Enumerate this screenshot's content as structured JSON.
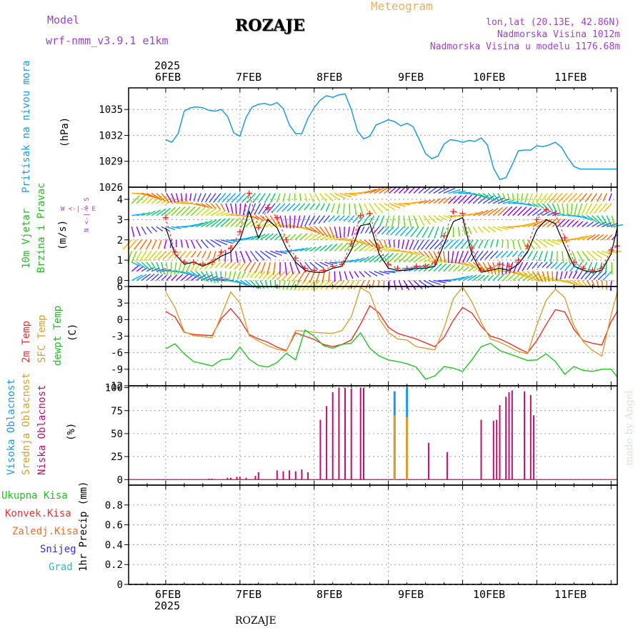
{
  "header": {
    "model_label": "Model",
    "model_name": "wrf-nmm_v3.9.1 e1km",
    "station": "ROZAJE",
    "title": "Meteogram",
    "lonlat": "lon,lat (20.13E, 42.86N)",
    "altitude": "Nadmorska Visina 1012m",
    "model_altitude": "Nadmorska Visina u modelu 1176.68m",
    "footer_station": "ROZAJE",
    "watermark": "made by Angel"
  },
  "colors": {
    "pressure": "#1a9be6",
    "temp2m": "#e8322c",
    "sfc_temp": "#d9a030",
    "dewpt": "#1ec81e",
    "wind_speed": "#000000",
    "wind_gust": "#ff2020",
    "cloud_high": "#1a9be6",
    "cloud_mid": "#d9a030",
    "cloud_low": "#c0106a",
    "label_purple": "#a040d0",
    "label_orange": "#e8b060",
    "total_precip": "#20c020",
    "convective": "#f03030",
    "freezing": "#f07020",
    "snow": "#3030e0",
    "hail": "#20c0c0"
  },
  "time_axis": {
    "year": "2025",
    "days": [
      "6FEB",
      "7FEB",
      "8FEB",
      "9FEB",
      "10FEB",
      "11FEB"
    ]
  },
  "panels": {
    "pressure": {
      "label1": "Pritisak na nivou mora",
      "unit": "(hPa)"
    },
    "wind": {
      "label1": "10m Vjetar",
      "label2": "Brzina i Pravac",
      "unit": "(m/s)",
      "compass_ns": "N <-|-> S",
      "compass_we": "W <-|-> E"
    },
    "temp": {
      "label1": "2m Temp",
      "label2": "SFC Temp",
      "label3": "dewpt Temp",
      "unit": "(C)"
    },
    "cloud": {
      "label1": "Visoka Oblacnost",
      "label2": "Srednja Oblacnost",
      "label3": "Niska Oblacnost",
      "unit": "(%)"
    },
    "precip": {
      "legend": [
        "Ukupna Kisa",
        "Konvek.Kisa",
        "Zaledj.Kisa",
        "Snijeg",
        "Grad"
      ],
      "unit": "1hr Precip (mm)"
    }
  },
  "chart_data": [
    {
      "type": "line",
      "name": "pressure",
      "ylabel": "(hPa)",
      "ylim": [
        1026,
        1037.5
      ],
      "yticks": [
        1029,
        1032,
        1035
      ],
      "x_hours": [
        0,
        6,
        12,
        18,
        24,
        30,
        36,
        42,
        48,
        54,
        60,
        66,
        72,
        78,
        84,
        90,
        96,
        102,
        108,
        114,
        120,
        126,
        132,
        138
      ],
      "x": [
        0,
        2,
        4,
        6,
        8,
        10,
        12,
        14,
        16,
        18,
        20,
        22,
        24,
        26,
        28,
        30,
        32,
        34,
        36,
        38,
        40,
        42,
        44,
        46,
        48,
        50,
        52,
        54,
        56,
        58,
        60,
        62,
        64,
        66,
        68,
        70,
        72,
        74,
        76,
        78,
        80,
        82,
        84,
        86,
        88,
        90,
        92,
        94,
        96,
        98,
        100,
        102,
        104,
        106,
        108,
        110,
        112,
        114,
        116,
        118,
        120,
        122,
        124,
        126,
        128,
        130,
        132,
        134,
        136,
        138,
        140,
        142,
        144,
        146
      ],
      "series": [
        {
          "name": "Pritisak na nivou mora",
          "values": [
            1031.5,
            1031.2,
            1032.2,
            1034.8,
            1035.2,
            1035.3,
            1035.2,
            1034.9,
            1034.8,
            1035.0,
            1034.2,
            1032.3,
            1031.9,
            1034.1,
            1035.3,
            1035.6,
            1035.7,
            1035.5,
            1035.8,
            1035.1,
            1033.2,
            1032.2,
            1032.2,
            1034.0,
            1035.2,
            1036.1,
            1036.6,
            1036.4,
            1036.7,
            1036.8,
            1035.0,
            1032.5,
            1031.6,
            1031.9,
            1033.2,
            1033.5,
            1033.8,
            1033.6,
            1033.1,
            1033.4,
            1033.0,
            1031.5,
            1029.9,
            1029.3,
            1029.6,
            1031.0,
            1031.5,
            1031.4,
            1031.2,
            1031.4,
            1031.3,
            1031.7,
            1030.9,
            1028.2,
            1026.9,
            1027.1,
            1028.6,
            1030.2,
            1030.3,
            1030.3,
            1030.8,
            1030.7,
            1030.9,
            1031.2,
            1030.6,
            1029.4,
            1028.4,
            1028.1,
            1028.1,
            1028.1,
            1028.1,
            1028.1,
            1028.1,
            1028.1
          ]
        }
      ]
    },
    {
      "type": "line",
      "name": "wind",
      "ylabel": "(m/s)",
      "ylim": [
        -0.3,
        4.6
      ],
      "yticks": [
        0,
        1,
        2,
        3,
        4
      ],
      "x": [
        0,
        3,
        6,
        9,
        12,
        15,
        18,
        21,
        24,
        27,
        30,
        33,
        36,
        39,
        42,
        45,
        48,
        51,
        54,
        57,
        60,
        63,
        66,
        69,
        72,
        75,
        78,
        81,
        84,
        87,
        90,
        93,
        96,
        99,
        102,
        105,
        108,
        111,
        114,
        117,
        120,
        123,
        126,
        129,
        132,
        135,
        138,
        141,
        144,
        146
      ],
      "series": [
        {
          "name": "speed",
          "values": [
            2.6,
            1.3,
            0.8,
            0.9,
            0.7,
            0.9,
            1.2,
            1.4,
            2.0,
            3.4,
            2.1,
            3.0,
            2.6,
            1.6,
            0.9,
            0.5,
            0.4,
            0.4,
            0.6,
            0.7,
            1.5,
            2.7,
            2.8,
            1.3,
            0.6,
            0.5,
            0.5,
            0.6,
            0.6,
            0.7,
            1.8,
            2.9,
            3.1,
            1.3,
            0.4,
            0.5,
            0.6,
            0.5,
            0.8,
            1.4,
            2.5,
            3.0,
            2.8,
            1.7,
            0.7,
            0.5,
            0.4,
            0.5,
            1.3,
            2.6
          ]
        },
        {
          "name": "gust",
          "values": [
            3.1,
            1.4,
            0.9,
            0.9,
            0.8,
            0.9,
            1.4,
            1.6,
            2.4,
            4.3,
            2.6,
            3.6,
            3.1,
            2.0,
            1.1,
            0.6,
            0.5,
            0.5,
            0.7,
            0.8,
            1.8,
            3.2,
            3.3,
            1.6,
            0.8,
            0.6,
            0.6,
            0.7,
            0.7,
            0.9,
            2.2,
            3.4,
            3.3,
            1.6,
            0.5,
            0.6,
            0.8,
            0.7,
            1.0,
            1.7,
            3.0,
            3.5,
            3.3,
            2.1,
            0.9,
            0.6,
            0.5,
            0.6,
            1.5,
            1.7
          ]
        }
      ]
    },
    {
      "type": "line",
      "name": "temperature",
      "ylabel": "(C)",
      "ylim": [
        -12,
        6
      ],
      "yticks": [
        -12,
        -9,
        -6,
        -3,
        0,
        3,
        6
      ],
      "x": [
        0,
        3,
        6,
        9,
        12,
        15,
        18,
        21,
        24,
        27,
        30,
        33,
        36,
        39,
        42,
        45,
        48,
        51,
        54,
        57,
        60,
        63,
        66,
        69,
        72,
        75,
        78,
        81,
        84,
        87,
        90,
        93,
        96,
        99,
        102,
        105,
        108,
        111,
        114,
        117,
        120,
        123,
        126,
        129,
        132,
        135,
        138,
        141,
        144,
        146
      ],
      "series": [
        {
          "name": "2m Temp",
          "values": [
            1.5,
            0.5,
            -2.3,
            -2.7,
            -2.8,
            -2.9,
            0.2,
            2.0,
            0.0,
            -2.7,
            -3.5,
            -4.1,
            -5.0,
            -5.6,
            -2.4,
            -3.0,
            -3.6,
            -4.5,
            -4.9,
            -4.5,
            -3.7,
            -0.8,
            2.5,
            1.2,
            -1.4,
            -2.5,
            -3.0,
            -3.5,
            -4.2,
            -4.9,
            -3.2,
            -0.1,
            2.2,
            1.2,
            -1.2,
            -3.0,
            -3.5,
            -4.3,
            -5.2,
            -6.0,
            -3.8,
            -0.9,
            1.8,
            1.4,
            -1.8,
            -3.8,
            -4.3,
            -4.6,
            -0.4,
            1.5
          ]
        },
        {
          "name": "SFC Temp",
          "values": [
            5.0,
            2.2,
            -2.2,
            -2.9,
            -3.1,
            -3.3,
            0.8,
            5.0,
            3.0,
            -2.9,
            -3.9,
            -4.7,
            -5.4,
            -5.7,
            -2.0,
            -2.1,
            -2.3,
            -2.4,
            -2.5,
            -2.0,
            0.5,
            5.8,
            4.8,
            0.2,
            -2.3,
            -3.5,
            -3.7,
            -4.9,
            -5.2,
            -5.5,
            -1.5,
            3.8,
            5.9,
            3.2,
            -0.5,
            -3.5,
            -4.1,
            -4.9,
            -5.8,
            -6.2,
            -1.0,
            3.5,
            5.5,
            4.0,
            -1.1,
            -4.0,
            -5.6,
            -6.6,
            0.8,
            5.0
          ]
        },
        {
          "name": "dewpt Temp",
          "values": [
            -5.3,
            -4.4,
            -6.2,
            -7.6,
            -8.0,
            -8.4,
            -7.3,
            -7.1,
            -5.0,
            -7.2,
            -8.3,
            -8.6,
            -7.8,
            -6.1,
            -7.3,
            -1.9,
            -3.0,
            -4.7,
            -5.2,
            -4.5,
            -4.3,
            -2.4,
            -5.2,
            -6.6,
            -7.3,
            -7.6,
            -8.0,
            -8.6,
            -10.8,
            -10.2,
            -8.5,
            -8.8,
            -9.4,
            -7.3,
            -4.9,
            -4.3,
            -5.6,
            -6.2,
            -6.8,
            -7.4,
            -7.3,
            -6.2,
            -7.6,
            -9.9,
            -8.5,
            -9.2,
            -9.4,
            -9.0,
            -9.0,
            -10.4
          ]
        }
      ]
    },
    {
      "type": "bar",
      "name": "cloud_cover",
      "ylabel": "(%)",
      "ylim": [
        -6,
        102
      ],
      "yticks": [
        0,
        25,
        50,
        75,
        100
      ],
      "series": [
        {
          "name": "Niska Oblacnost",
          "x": [
            14,
            15,
            20,
            21,
            23,
            24,
            26,
            29,
            30,
            36,
            38,
            40,
            42,
            44,
            46,
            50,
            52,
            54,
            56,
            58,
            60,
            63,
            64,
            85,
            91,
            102,
            106,
            107,
            108,
            110,
            111,
            112,
            116,
            118,
            119
          ],
          "values": [
            1,
            1,
            2,
            2,
            3,
            3,
            2,
            4,
            8,
            10,
            9,
            10,
            9,
            11,
            8,
            65,
            80,
            95,
            100,
            100,
            99,
            100,
            100,
            40,
            30,
            65,
            64,
            65,
            81,
            90,
            95,
            97,
            96,
            92,
            70
          ]
        },
        {
          "name": "Srednja Oblacnost",
          "x": [
            74,
            78
          ],
          "values": [
            70,
            68
          ]
        },
        {
          "name": "Visoka Oblacnost",
          "x": [
            74,
            78
          ],
          "values": [
            96,
            100
          ]
        }
      ]
    },
    {
      "type": "bar",
      "name": "precip",
      "ylabel": "1hr Precip (mm)",
      "ylim": [
        0,
        1
      ],
      "yticks": [
        0,
        0.2,
        0.4,
        0.6,
        0.8
      ],
      "series": [
        {
          "name": "Ukupna Kisa",
          "values": []
        }
      ]
    }
  ]
}
